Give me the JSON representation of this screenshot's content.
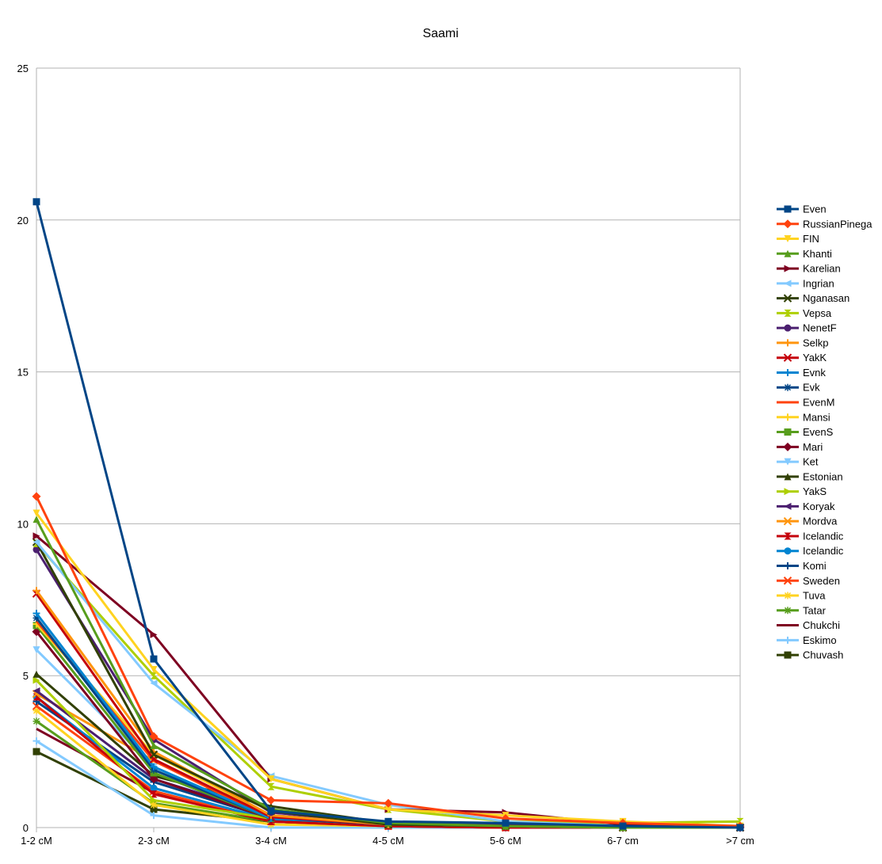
{
  "chart_data": {
    "type": "line",
    "title": "Saami",
    "xlabel": "",
    "ylabel": "",
    "ylim": [
      0,
      25
    ],
    "yticks": [
      "0",
      "5",
      "10",
      "15",
      "20",
      "25"
    ],
    "categories": [
      "1-2 cM",
      "2-3 cM",
      "3-4 cM",
      "4-5 cM",
      "5-6 cM",
      "6-7 cm",
      ">7 cm"
    ],
    "grid": true,
    "legend_position": "right",
    "series": [
      {
        "name": "Even",
        "color": "#004586",
        "marker": "square",
        "values": [
          20.6,
          5.55,
          0.55,
          0.2,
          0.15,
          0.05,
          0.0
        ]
      },
      {
        "name": "RussianPinega",
        "color": "#ff420e",
        "marker": "diamond",
        "values": [
          10.9,
          3.0,
          0.9,
          0.8,
          0.3,
          0.15,
          0.05
        ]
      },
      {
        "name": "FIN",
        "color": "#ffd320",
        "marker": "triangle-down",
        "values": [
          10.35,
          5.2,
          1.6,
          0.6,
          0.4,
          0.2,
          0.05
        ]
      },
      {
        "name": "Khanti",
        "color": "#579d1c",
        "marker": "triangle-up",
        "values": [
          10.15,
          2.7,
          0.6,
          0.15,
          0.05,
          0.0,
          0.0
        ]
      },
      {
        "name": "Karelian",
        "color": "#7e0021",
        "marker": "triangle-right",
        "values": [
          9.6,
          6.35,
          1.6,
          0.6,
          0.5,
          0.1,
          0.05
        ]
      },
      {
        "name": "Ingrian",
        "color": "#83caff",
        "marker": "triangle-left",
        "values": [
          9.4,
          4.75,
          1.7,
          0.75,
          0.2,
          0.05,
          0.0
        ]
      },
      {
        "name": "Nganasan",
        "color": "#314004",
        "marker": "x",
        "values": [
          9.4,
          2.4,
          0.55,
          0.1,
          0.05,
          0.0,
          0.0
        ]
      },
      {
        "name": "Vepsa",
        "color": "#aecf00",
        "marker": "hourglass",
        "values": [
          9.35,
          5.0,
          1.35,
          0.6,
          0.2,
          0.15,
          0.2
        ]
      },
      {
        "name": "NenetF",
        "color": "#4b1f6f",
        "marker": "circle",
        "values": [
          9.15,
          2.9,
          0.5,
          0.15,
          0.1,
          0.05,
          0.0
        ]
      },
      {
        "name": "Selkp",
        "color": "#ff950e",
        "marker": "plus",
        "values": [
          7.8,
          2.5,
          0.4,
          0.1,
          0.05,
          0.0,
          0.0
        ]
      },
      {
        "name": "YakK",
        "color": "#c5000b",
        "marker": "x",
        "values": [
          7.7,
          2.25,
          0.35,
          0.1,
          0.05,
          0.0,
          0.0
        ]
      },
      {
        "name": "Evnk",
        "color": "#0084d1",
        "marker": "plus",
        "values": [
          7.05,
          2.0,
          0.3,
          0.15,
          0.05,
          0.0,
          0.0
        ]
      },
      {
        "name": "Evk",
        "color": "#004586",
        "marker": "star",
        "values": [
          6.9,
          1.9,
          0.3,
          0.1,
          0.05,
          0.0,
          0.0
        ]
      },
      {
        "name": "EvenM",
        "color": "#ff420e",
        "marker": "none",
        "values": [
          6.8,
          2.2,
          0.3,
          0.1,
          0.05,
          0.0,
          0.0
        ]
      },
      {
        "name": "Mansi",
        "color": "#ffd320",
        "marker": "plus",
        "values": [
          6.7,
          2.4,
          0.4,
          0.1,
          0.05,
          0.0,
          0.0
        ]
      },
      {
        "name": "EvenS",
        "color": "#579d1c",
        "marker": "square",
        "values": [
          6.65,
          1.8,
          0.3,
          0.1,
          0.05,
          0.0,
          0.0
        ]
      },
      {
        "name": "Mari",
        "color": "#7e0021",
        "marker": "diamond",
        "values": [
          6.45,
          1.6,
          0.3,
          0.1,
          0.05,
          0.0,
          0.0
        ]
      },
      {
        "name": "Ket",
        "color": "#83caff",
        "marker": "triangle-down",
        "values": [
          5.85,
          2.0,
          0.3,
          0.1,
          0.05,
          0.0,
          0.0
        ]
      },
      {
        "name": "Estonian",
        "color": "#314004",
        "marker": "triangle-up",
        "values": [
          5.05,
          1.7,
          0.7,
          0.15,
          0.05,
          0.05,
          0.0
        ]
      },
      {
        "name": "YakS",
        "color": "#aecf00",
        "marker": "triangle-right",
        "values": [
          4.85,
          0.9,
          0.3,
          0.1,
          0.05,
          0.0,
          0.0
        ]
      },
      {
        "name": "Koryak",
        "color": "#4b1f6f",
        "marker": "triangle-left",
        "values": [
          4.5,
          1.6,
          0.4,
          0.15,
          0.05,
          0.0,
          0.0
        ]
      },
      {
        "name": "Mordva",
        "color": "#ff950e",
        "marker": "x",
        "values": [
          4.4,
          2.2,
          0.35,
          0.1,
          0.05,
          0.0,
          0.0
        ]
      },
      {
        "name": "Icelandic",
        "color": "#c5000b",
        "marker": "hourglass",
        "values": [
          4.3,
          1.1,
          0.2,
          0.05,
          0.0,
          0.0,
          0.0
        ]
      },
      {
        "name": "Icelandic",
        "color": "#0084d1",
        "marker": "circle",
        "values": [
          4.3,
          1.3,
          0.25,
          0.1,
          0.05,
          0.0,
          0.0
        ]
      },
      {
        "name": "Komi",
        "color": "#004586",
        "marker": "plus",
        "values": [
          4.15,
          1.5,
          0.3,
          0.1,
          0.05,
          0.0,
          0.0
        ]
      },
      {
        "name": "Sweden",
        "color": "#ff420e",
        "marker": "x",
        "values": [
          4.0,
          1.2,
          0.2,
          0.05,
          0.0,
          0.0,
          0.0
        ]
      },
      {
        "name": "Tuva",
        "color": "#ffd320",
        "marker": "star",
        "values": [
          3.85,
          0.75,
          0.1,
          0.05,
          0.0,
          0.0,
          0.0
        ]
      },
      {
        "name": "Tatar",
        "color": "#579d1c",
        "marker": "star",
        "values": [
          3.5,
          0.8,
          0.2,
          0.05,
          0.0,
          0.0,
          0.0
        ]
      },
      {
        "name": "Chukchi",
        "color": "#7e0021",
        "marker": "none",
        "values": [
          3.25,
          1.15,
          0.2,
          0.05,
          0.0,
          0.0,
          0.0
        ]
      },
      {
        "name": "Eskimo",
        "color": "#83caff",
        "marker": "plus",
        "values": [
          2.85,
          0.4,
          0.0,
          0.0,
          0.0,
          0.0,
          0.0
        ]
      },
      {
        "name": "Chuvash",
        "color": "#314004",
        "marker": "square",
        "values": [
          2.5,
          0.6,
          0.2,
          0.05,
          0.0,
          0.05,
          0.0
        ]
      }
    ]
  }
}
